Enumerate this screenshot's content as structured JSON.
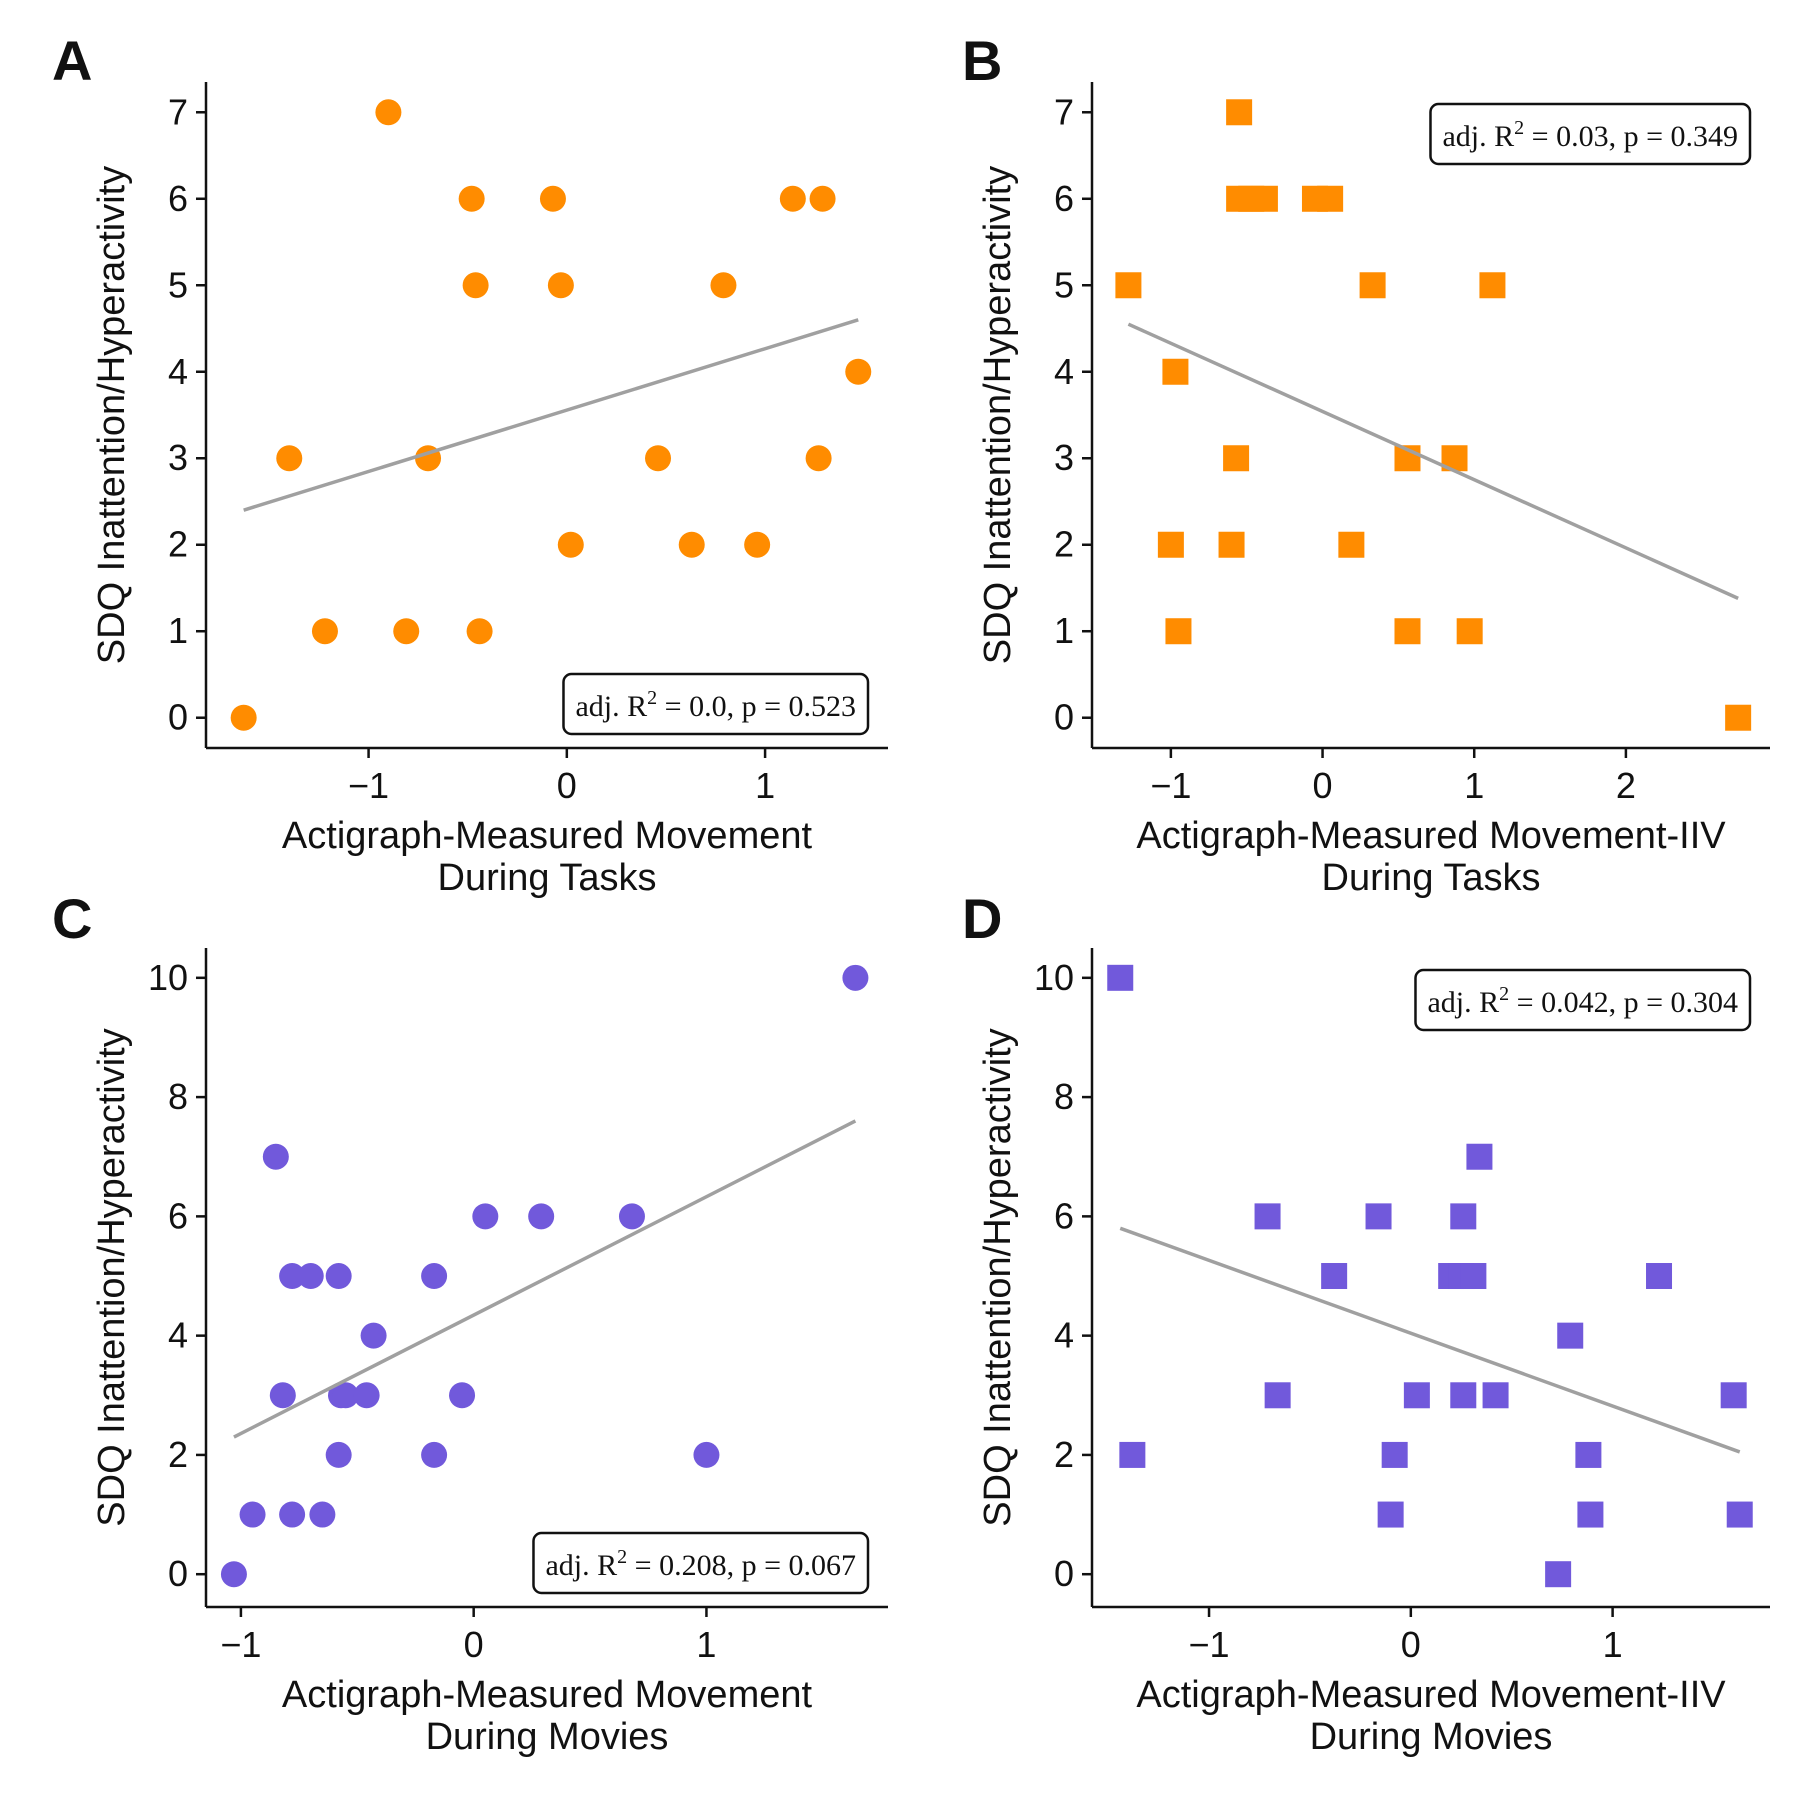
{
  "figure": {
    "regression_line_color": "#a0a0a0",
    "axis_color": "#111111"
  },
  "chart_data": [
    {
      "panel": "A",
      "type": "scatter",
      "marker": "circle",
      "color": "#ff8c00",
      "xlabel": [
        "Actigraph-Measured Movement",
        "During Tasks"
      ],
      "ylabel": "SDQ Inattention/Hyperactivity",
      "xlim": [
        -1.82,
        1.62
      ],
      "ylim": [
        -0.35,
        7.35
      ],
      "xticks": [
        -1,
        0,
        1
      ],
      "xtick_labels": [
        "−1",
        "0",
        "1"
      ],
      "yticks": [
        0,
        1,
        2,
        3,
        4,
        5,
        6,
        7
      ],
      "ytick_labels": [
        "0",
        "1",
        "2",
        "3",
        "4",
        "5",
        "6",
        "7"
      ],
      "points": [
        {
          "x": -1.63,
          "y": 0
        },
        {
          "x": -1.4,
          "y": 3
        },
        {
          "x": -1.22,
          "y": 1
        },
        {
          "x": -0.9,
          "y": 7
        },
        {
          "x": -0.81,
          "y": 1
        },
        {
          "x": -0.7,
          "y": 3
        },
        {
          "x": -0.48,
          "y": 6
        },
        {
          "x": -0.46,
          "y": 5
        },
        {
          "x": -0.44,
          "y": 1
        },
        {
          "x": -0.07,
          "y": 6
        },
        {
          "x": -0.03,
          "y": 5
        },
        {
          "x": 0.02,
          "y": 2
        },
        {
          "x": 0.46,
          "y": 3
        },
        {
          "x": 0.63,
          "y": 2
        },
        {
          "x": 0.79,
          "y": 5
        },
        {
          "x": 0.96,
          "y": 2
        },
        {
          "x": 1.14,
          "y": 6
        },
        {
          "x": 1.27,
          "y": 3
        },
        {
          "x": 1.29,
          "y": 6
        },
        {
          "x": 1.47,
          "y": 4
        }
      ],
      "fit_line": {
        "x": [
          -1.63,
          1.47
        ],
        "y": [
          2.4,
          4.6
        ]
      },
      "stats": {
        "prefix": "adj. R",
        "sup": "2",
        "suffix": " = 0.0, p = 0.523",
        "position": "bottom-right"
      }
    },
    {
      "panel": "B",
      "type": "scatter",
      "marker": "square",
      "color": "#ff8c00",
      "xlabel": [
        "Actigraph-Measured Movement-IIV",
        "During Tasks"
      ],
      "ylabel": "SDQ Inattention/Hyperactivity",
      "xlim": [
        -1.52,
        2.95
      ],
      "ylim": [
        -0.35,
        7.35
      ],
      "xticks": [
        -1,
        0,
        1,
        2
      ],
      "xtick_labels": [
        "−1",
        "0",
        "1",
        "2"
      ],
      "yticks": [
        0,
        1,
        2,
        3,
        4,
        5,
        6,
        7
      ],
      "ytick_labels": [
        "0",
        "1",
        "2",
        "3",
        "4",
        "5",
        "6",
        "7"
      ],
      "points": [
        {
          "x": -1.28,
          "y": 5
        },
        {
          "x": -0.97,
          "y": 4
        },
        {
          "x": -1.0,
          "y": 2
        },
        {
          "x": -0.95,
          "y": 1
        },
        {
          "x": -0.6,
          "y": 2
        },
        {
          "x": -0.57,
          "y": 3
        },
        {
          "x": -0.55,
          "y": 7
        },
        {
          "x": -0.55,
          "y": 6
        },
        {
          "x": -0.47,
          "y": 6
        },
        {
          "x": -0.38,
          "y": 6
        },
        {
          "x": -0.05,
          "y": 6
        },
        {
          "x": 0.05,
          "y": 6
        },
        {
          "x": 0.19,
          "y": 2
        },
        {
          "x": 0.33,
          "y": 5
        },
        {
          "x": 0.56,
          "y": 3
        },
        {
          "x": 0.56,
          "y": 1
        },
        {
          "x": 0.87,
          "y": 3
        },
        {
          "x": 0.97,
          "y": 1
        },
        {
          "x": 1.12,
          "y": 5
        },
        {
          "x": 2.74,
          "y": 0
        }
      ],
      "fit_line": {
        "x": [
          -1.28,
          2.74
        ],
        "y": [
          4.55,
          1.38
        ]
      },
      "stats": {
        "prefix": "adj. R",
        "sup": "2",
        "suffix": " = 0.03, p = 0.349",
        "position": "top-right"
      }
    },
    {
      "panel": "C",
      "type": "scatter",
      "marker": "circle",
      "color": "#7159db",
      "xlabel": [
        "Actigraph-Measured Movement",
        "During Movies"
      ],
      "ylabel": "SDQ Inattention/Hyperactivity",
      "xlim": [
        -1.15,
        1.78
      ],
      "ylim": [
        -0.55,
        10.5
      ],
      "xticks": [
        -1,
        0,
        1
      ],
      "xtick_labels": [
        "−1",
        "0",
        "1"
      ],
      "yticks": [
        0,
        2,
        4,
        6,
        8,
        10
      ],
      "ytick_labels": [
        "0",
        "2",
        "4",
        "6",
        "8",
        "10"
      ],
      "points": [
        {
          "x": -1.03,
          "y": 0
        },
        {
          "x": -0.95,
          "y": 1
        },
        {
          "x": -0.85,
          "y": 7
        },
        {
          "x": -0.82,
          "y": 3
        },
        {
          "x": -0.78,
          "y": 5
        },
        {
          "x": -0.78,
          "y": 1
        },
        {
          "x": -0.7,
          "y": 5
        },
        {
          "x": -0.65,
          "y": 1
        },
        {
          "x": -0.58,
          "y": 5
        },
        {
          "x": -0.58,
          "y": 2
        },
        {
          "x": -0.57,
          "y": 3
        },
        {
          "x": -0.55,
          "y": 3
        },
        {
          "x": -0.46,
          "y": 3
        },
        {
          "x": -0.43,
          "y": 4
        },
        {
          "x": -0.17,
          "y": 5
        },
        {
          "x": -0.17,
          "y": 2
        },
        {
          "x": -0.05,
          "y": 3
        },
        {
          "x": 0.05,
          "y": 6
        },
        {
          "x": 0.29,
          "y": 6
        },
        {
          "x": 0.68,
          "y": 6
        },
        {
          "x": 1.0,
          "y": 2
        },
        {
          "x": 1.64,
          "y": 10
        }
      ],
      "fit_line": {
        "x": [
          -1.03,
          1.64
        ],
        "y": [
          2.3,
          7.6
        ]
      },
      "stats": {
        "prefix": "adj. R",
        "sup": "2",
        "suffix": " = 0.208, p = 0.067",
        "position": "bottom-right"
      }
    },
    {
      "panel": "D",
      "type": "scatter",
      "marker": "square",
      "color": "#7159db",
      "xlabel": [
        "Actigraph-Measured Movement-IIV",
        "During Movies"
      ],
      "ylabel": "SDQ Inattention/Hyperactivity",
      "xlim": [
        -1.58,
        1.78
      ],
      "ylim": [
        -0.55,
        10.5
      ],
      "xticks": [
        -1,
        0,
        1
      ],
      "xtick_labels": [
        "−1",
        "0",
        "1"
      ],
      "yticks": [
        0,
        2,
        4,
        6,
        8,
        10
      ],
      "ytick_labels": [
        "0",
        "2",
        "4",
        "6",
        "8",
        "10"
      ],
      "points": [
        {
          "x": -1.44,
          "y": 10
        },
        {
          "x": -1.38,
          "y": 2
        },
        {
          "x": -0.71,
          "y": 6
        },
        {
          "x": -0.66,
          "y": 3
        },
        {
          "x": -0.38,
          "y": 5
        },
        {
          "x": -0.16,
          "y": 6
        },
        {
          "x": -0.1,
          "y": 1
        },
        {
          "x": -0.08,
          "y": 2
        },
        {
          "x": 0.03,
          "y": 3
        },
        {
          "x": 0.2,
          "y": 5
        },
        {
          "x": 0.25,
          "y": 5
        },
        {
          "x": 0.26,
          "y": 6
        },
        {
          "x": 0.26,
          "y": 3
        },
        {
          "x": 0.31,
          "y": 5
        },
        {
          "x": 0.34,
          "y": 7
        },
        {
          "x": 0.42,
          "y": 3
        },
        {
          "x": 0.73,
          "y": 0
        },
        {
          "x": 0.79,
          "y": 4
        },
        {
          "x": 0.88,
          "y": 2
        },
        {
          "x": 0.89,
          "y": 1
        },
        {
          "x": 1.23,
          "y": 5
        },
        {
          "x": 1.6,
          "y": 3
        },
        {
          "x": 1.63,
          "y": 1
        }
      ],
      "fit_line": {
        "x": [
          -1.44,
          1.63
        ],
        "y": [
          5.8,
          2.05
        ]
      },
      "stats": {
        "prefix": "adj. R",
        "sup": "2",
        "suffix": " = 0.042, p = 0.304",
        "position": "top-right"
      }
    }
  ]
}
